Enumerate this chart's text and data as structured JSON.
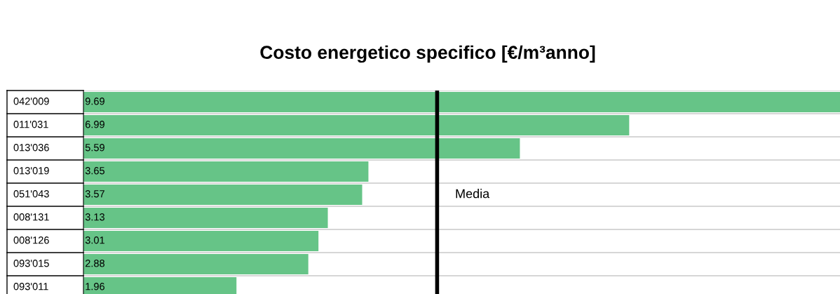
{
  "chart_data": {
    "type": "bar",
    "orientation": "horizontal",
    "title": "Costo energetico specifico [€/m³anno]",
    "categories": [
      "042'009",
      "011'031",
      "013'036",
      "013'019",
      "051'043",
      "008'131",
      "008'126",
      "093'015",
      "093'011"
    ],
    "values": [
      9.69,
      6.99,
      5.59,
      3.65,
      3.57,
      3.13,
      3.01,
      2.88,
      1.96
    ],
    "color": "#66c487",
    "data_labels": true,
    "ref_lines": [
      {
        "axis": "x",
        "value": 4.53,
        "label": "Media",
        "color": "#000000",
        "line_style": "solid"
      }
    ]
  }
}
